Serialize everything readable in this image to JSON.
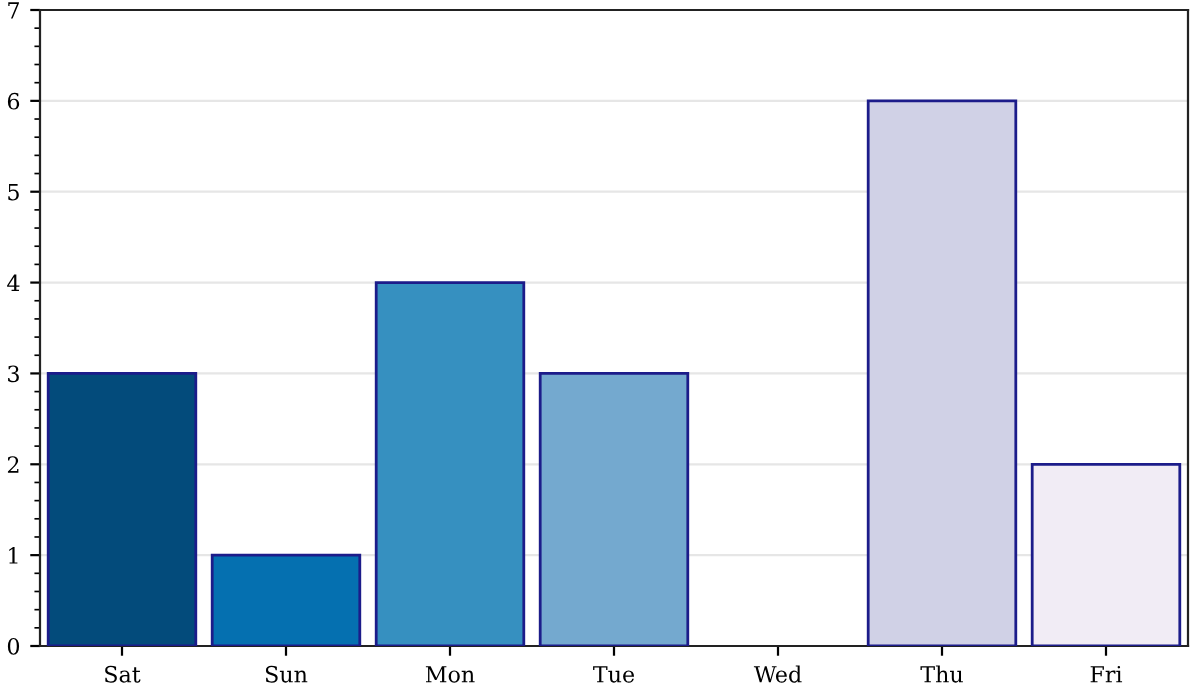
{
  "chart_data": {
    "type": "bar",
    "categories": [
      "Sat",
      "Sun",
      "Mon",
      "Tue",
      "Wed",
      "Thu",
      "Fri"
    ],
    "values": [
      3,
      1,
      4,
      3,
      0,
      6,
      2
    ],
    "colors": [
      "#034b7b",
      "#0570b0",
      "#3690c0",
      "#74a9cf",
      "#a6bddb",
      "#d0d1e6",
      "#f1ecf5"
    ],
    "ylim": [
      0,
      7
    ],
    "yticks": [
      0,
      1,
      2,
      3,
      4,
      5,
      6,
      7
    ],
    "grid": "y",
    "legend": false
  }
}
